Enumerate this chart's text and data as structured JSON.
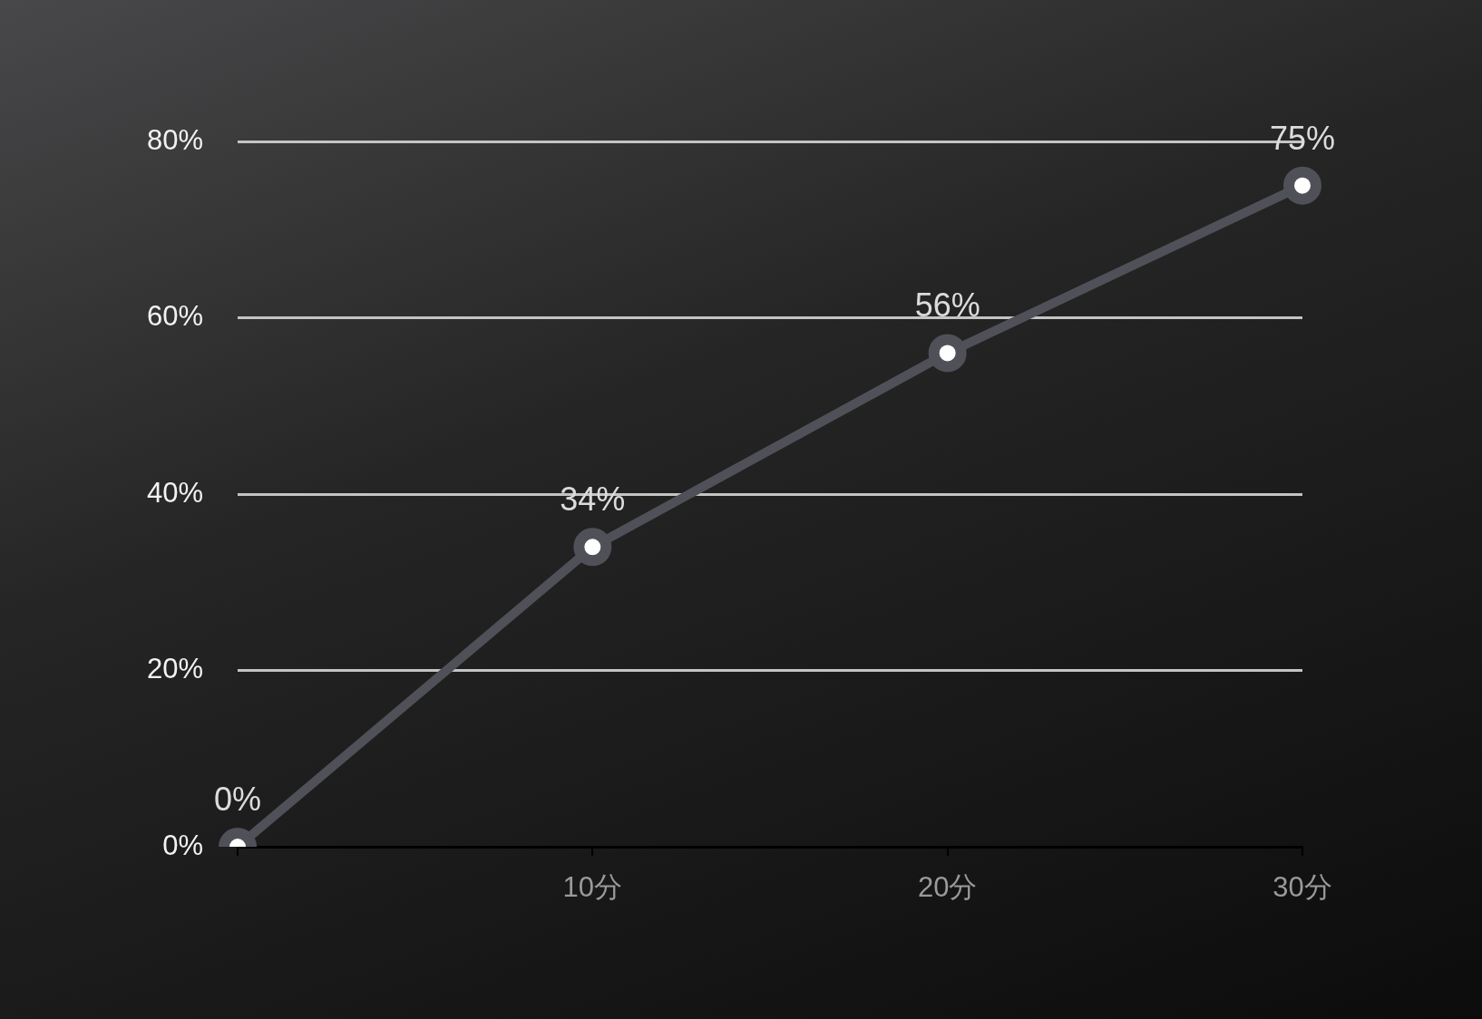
{
  "chart_data": {
    "type": "line",
    "categories": [
      null,
      "10分",
      "20分",
      "30分"
    ],
    "series": [
      {
        "color": "#505158",
        "values": [
          0,
          34,
          56,
          75
        ],
        "value_labels": [
          "0%",
          "34%",
          "56%",
          "75%"
        ]
      }
    ],
    "ylim": [
      0,
      80
    ],
    "yticks": [
      {
        "value": 0,
        "label": "0%"
      },
      {
        "value": 20,
        "label": "20%"
      },
      {
        "value": 40,
        "label": "40%"
      },
      {
        "value": 60,
        "label": "60%"
      },
      {
        "value": 80,
        "label": "80%"
      }
    ],
    "grid": "y",
    "legend": false,
    "marker": "circle",
    "line_style": "solid"
  }
}
